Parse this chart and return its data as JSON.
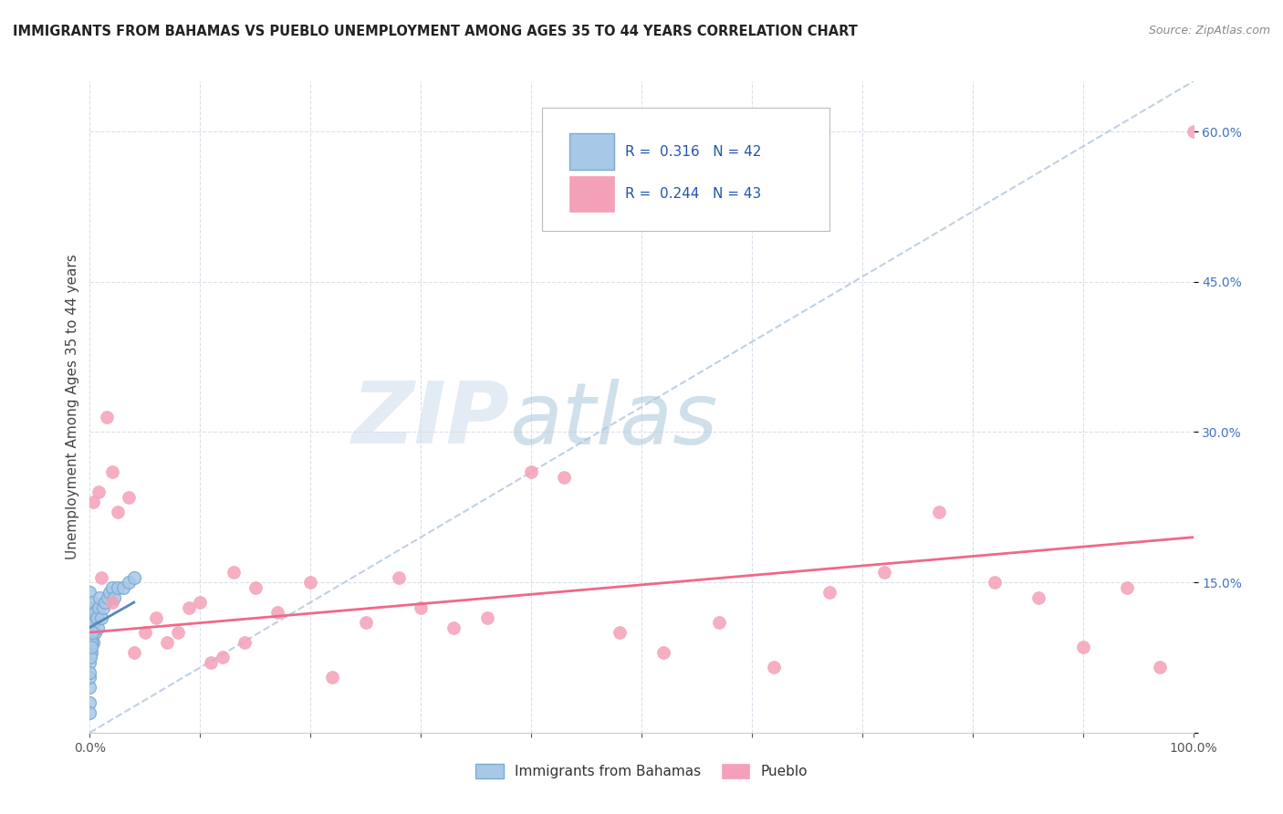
{
  "title": "IMMIGRANTS FROM BAHAMAS VS PUEBLO UNEMPLOYMENT AMONG AGES 35 TO 44 YEARS CORRELATION CHART",
  "source": "Source: ZipAtlas.com",
  "ylabel": "Unemployment Among Ages 35 to 44 years",
  "xlim": [
    0,
    100
  ],
  "ylim": [
    0,
    65
  ],
  "yticks": [
    0,
    15,
    30,
    45,
    60
  ],
  "xticks": [
    0,
    10,
    20,
    30,
    40,
    50,
    60,
    70,
    80,
    90,
    100
  ],
  "legend_r_blue": "0.316",
  "legend_n_blue": "42",
  "legend_r_pink": "0.244",
  "legend_n_pink": "43",
  "blue_color": "#a8c8e8",
  "pink_color": "#f4a0b8",
  "blue_edge_color": "#7aaad0",
  "pink_edge_color": "#f4a0b8",
  "blue_line_color": "#5588bb",
  "pink_line_color": "#f06888",
  "dashed_line_color": "#b8cce0",
  "title_color": "#222222",
  "source_color": "#888888",
  "axis_label_color": "#444444",
  "tick_color_right": "#4472c4",
  "grid_color": "#d8dce8",
  "blue_scatter_x": [
    0.0,
    0.0,
    0.0,
    0.0,
    0.0,
    0.0,
    0.0,
    0.0,
    0.0,
    0.05,
    0.05,
    0.1,
    0.1,
    0.15,
    0.2,
    0.2,
    0.3,
    0.3,
    0.4,
    0.5,
    0.5,
    0.6,
    0.7,
    0.8,
    0.9,
    1.0,
    1.2,
    1.4,
    1.6,
    1.8,
    2.0,
    2.2,
    2.5,
    3.0,
    3.5,
    4.0,
    0.0,
    0.0,
    0.05,
    0.1,
    0.15,
    0.25
  ],
  "blue_scatter_y": [
    3.0,
    4.5,
    5.5,
    7.0,
    8.5,
    9.5,
    11.0,
    12.5,
    14.0,
    10.0,
    12.0,
    8.0,
    11.5,
    9.5,
    13.0,
    10.5,
    9.0,
    11.5,
    11.0,
    12.0,
    10.0,
    11.5,
    10.5,
    12.5,
    13.5,
    11.5,
    12.5,
    13.0,
    13.5,
    14.0,
    14.5,
    13.5,
    14.5,
    14.5,
    15.0,
    15.5,
    6.0,
    2.0,
    7.5,
    9.0,
    8.5,
    10.0
  ],
  "pink_scatter_x": [
    0.3,
    0.8,
    1.5,
    2.0,
    2.5,
    3.5,
    5.0,
    7.0,
    9.0,
    11.0,
    13.0,
    15.0,
    17.0,
    20.0,
    22.0,
    25.0,
    28.0,
    30.0,
    33.0,
    36.0,
    40.0,
    43.0,
    48.0,
    52.0,
    57.0,
    62.0,
    67.0,
    72.0,
    77.0,
    82.0,
    86.0,
    90.0,
    94.0,
    97.0,
    1.0,
    2.0,
    4.0,
    6.0,
    8.0,
    10.0,
    12.0,
    14.0,
    100.0
  ],
  "pink_scatter_y": [
    23.0,
    24.0,
    31.5,
    26.0,
    22.0,
    23.5,
    10.0,
    9.0,
    12.5,
    7.0,
    16.0,
    14.5,
    12.0,
    15.0,
    5.5,
    11.0,
    15.5,
    12.5,
    10.5,
    11.5,
    26.0,
    25.5,
    10.0,
    8.0,
    11.0,
    6.5,
    14.0,
    16.0,
    22.0,
    15.0,
    13.5,
    8.5,
    14.5,
    6.5,
    15.5,
    13.0,
    8.0,
    11.5,
    10.0,
    13.0,
    7.5,
    9.0,
    60.0
  ]
}
